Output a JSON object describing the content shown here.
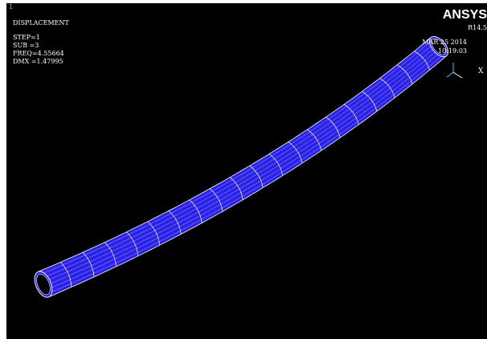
{
  "window_number": "1",
  "plot_title": "DISPLACEMENT",
  "info_lines": [
    "STEP=1",
    "SUB =3",
    "FREQ=4.55664",
    "DMX =1.47995"
  ],
  "brand": "ANSYS",
  "release": "R14.5",
  "date": "MAR 25 2014",
  "time": "10:19:03",
  "triad_axis_label": "X",
  "colors": {
    "background": "#000000",
    "tube_fill": "#2a22e8",
    "mesh_lines": "#ffffff",
    "triad": "#33ccff"
  }
}
